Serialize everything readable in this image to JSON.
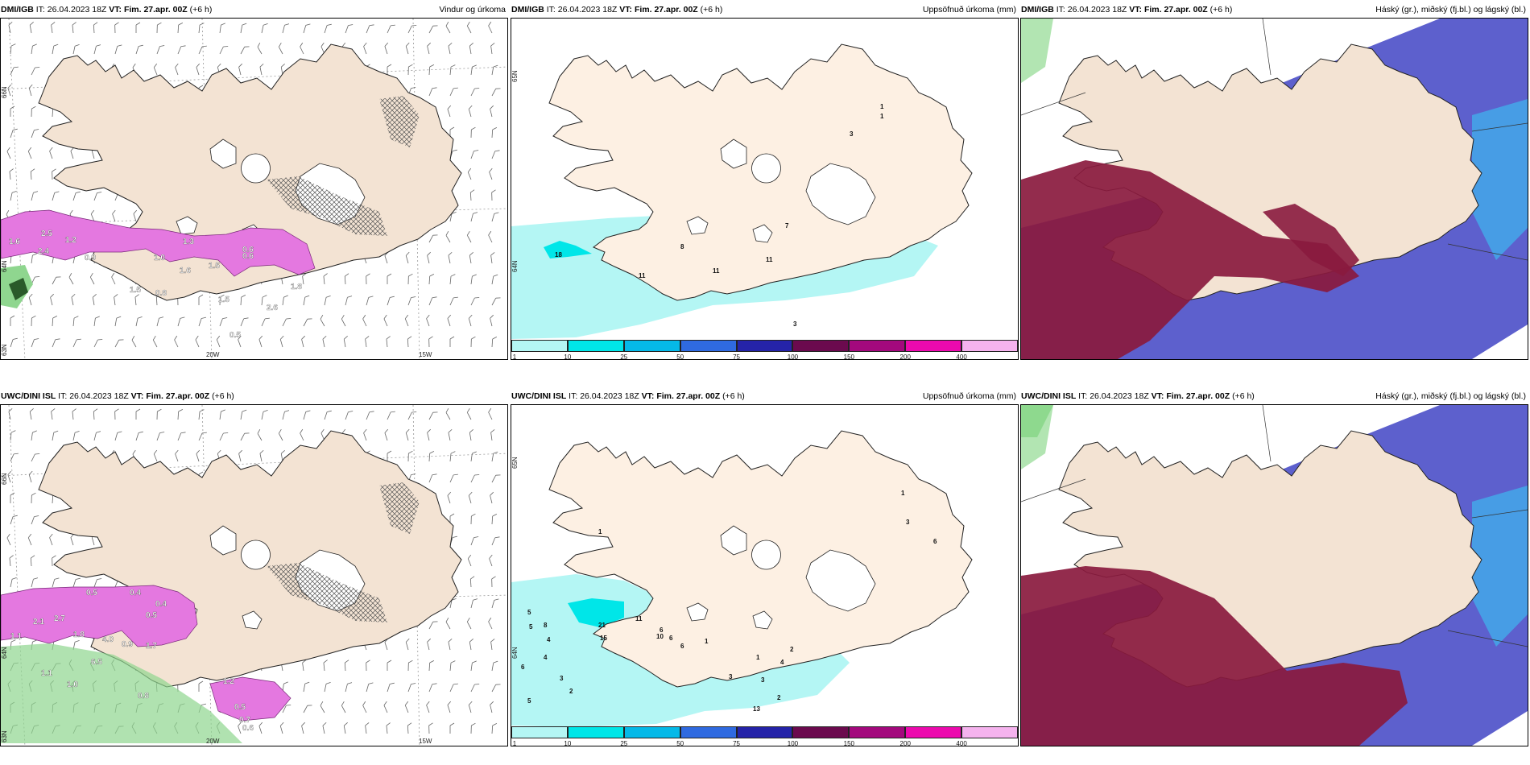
{
  "panels": [
    {
      "id": "p1",
      "model": "DMI/IGB",
      "it_label": "IT:",
      "it_value": "26.04.2023 18Z",
      "vt_label": "VT:",
      "vt_value": "Fim. 27.apr. 00Z",
      "lead": "(+6 h)",
      "product": "Vindur og úrkoma",
      "lat_labels": [
        "66N",
        "64N",
        "63N"
      ],
      "lon_labels": [
        "20W",
        "15W"
      ],
      "value_labels": [
        "1.6",
        "2.5",
        "2.4",
        "0.9",
        "1.0",
        "1.6",
        "1.3",
        "1.5",
        "0.6",
        "0.6",
        "1.8",
        "1.5",
        "2.6",
        "0.5",
        "1.5",
        "0.8",
        "1.2"
      ]
    },
    {
      "id": "p2",
      "model": "DMI/IGB",
      "it_label": "IT:",
      "it_value": "26.04.2023 18Z",
      "vt_label": "VT:",
      "vt_value": "Fim. 27.apr. 00Z",
      "lead": "(+6 h)",
      "product": "Uppsöfnuð úrkoma (mm)",
      "lat_labels": [
        "65N",
        "64N"
      ],
      "value_labels": [
        "18",
        "11",
        "8",
        "11",
        "7",
        "11",
        "3",
        "1",
        "1",
        "3"
      ]
    },
    {
      "id": "p3",
      "model": "DMI/IGB",
      "it_label": "IT:",
      "it_value": "26.04.2023 18Z",
      "vt_label": "VT:",
      "vt_value": "Fim. 27.apr. 00Z",
      "lead": "(+6 h)",
      "product": "Háský (gr.), miðský (fj.bl.) og lágský (bl.)"
    },
    {
      "id": "p4",
      "model": "UWC/DINI ISL",
      "it_label": "IT:",
      "it_value": "26.04.2023 18Z",
      "vt_label": "VT:",
      "vt_value": "Fim. 27.apr. 00Z",
      "lead": "(+6 h)",
      "product": "",
      "lat_labels": [
        "66N",
        "64N",
        "63N"
      ],
      "lon_labels": [
        "20W",
        "15W"
      ],
      "value_labels": [
        "0.5",
        "0.4",
        "1.1",
        "2.1",
        "2.7",
        "1.8",
        "4.0",
        "0.4",
        "0.5",
        "1.7",
        "0.9",
        "6.5",
        "1.1",
        "1.0",
        "0.8",
        "1.2",
        "0.5",
        "0.7",
        "0.6"
      ]
    },
    {
      "id": "p5",
      "model": "UWC/DINI ISL",
      "it_label": "IT:",
      "it_value": "26.04.2023 18Z",
      "vt_label": "VT:",
      "vt_value": "Fim. 27.apr. 00Z",
      "lead": "(+6 h)",
      "product": "Uppsöfnuð úrkoma (mm)",
      "lat_labels": [
        "65N",
        "64N"
      ],
      "value_labels": [
        "21",
        "15",
        "5",
        "8",
        "5",
        "4",
        "6",
        "4",
        "3",
        "2",
        "5",
        "1",
        "6",
        "11",
        "10",
        "6",
        "6",
        "1",
        "3",
        "1",
        "3",
        "13",
        "2",
        "4",
        "2",
        "1",
        "3",
        "6"
      ]
    },
    {
      "id": "p6",
      "model": "UWC/DINI ISL",
      "it_label": "IT:",
      "it_value": "26.04.2023 18Z",
      "vt_label": "VT:",
      "vt_value": "Fim. 27.apr. 00Z",
      "lead": "(+6 h)",
      "product": "Háský (gr.), miðský (fj.bl.) og lágský (bl.)"
    }
  ],
  "colorbar": {
    "ticks": [
      "1",
      "10",
      "25",
      "50",
      "75",
      "100",
      "150",
      "200",
      "400"
    ],
    "colors": [
      "#b4f6f4",
      "#00e6e8",
      "#05b9e8",
      "#2f6ae0",
      "#2523a8",
      "#6b0a4e",
      "#a3097d",
      "#ec0aae",
      "#f5b3ee"
    ]
  },
  "colors": {
    "land": "#f3e3d3",
    "land_light": "#fdf0e3",
    "precip_light": "#b4f6f4",
    "precip_mid": "#00e6e8",
    "pink": "#e478e0",
    "purple": "#9a4e9a",
    "green": "#8fd68f",
    "high_cloud": "#8a1a3e",
    "mid_cloud": "#4b4fc8",
    "low_cloud": "#3fb8f0"
  }
}
